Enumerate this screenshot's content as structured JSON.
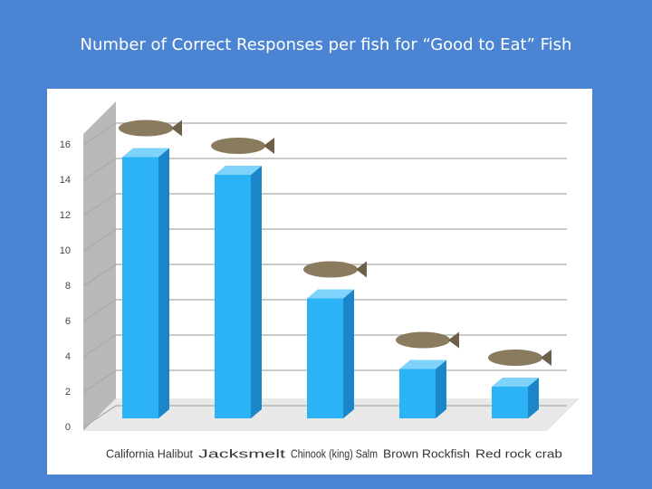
{
  "chart_data": {
    "type": "bar",
    "title": "Number of Correct Responses per fish for “Good to Eat” Fish",
    "categories": [
      "California Halibut",
      "Jacksmelt",
      "Chinook (king) Salm",
      "Brown Rockfish",
      "Red rock crab"
    ],
    "values": [
      15,
      14,
      7,
      3,
      2
    ],
    "color": "#2bb3f6",
    "ylim": [
      0,
      16
    ],
    "yticks": [
      0,
      2,
      4,
      6,
      8,
      10,
      12,
      14,
      16
    ],
    "grid": true
  }
}
